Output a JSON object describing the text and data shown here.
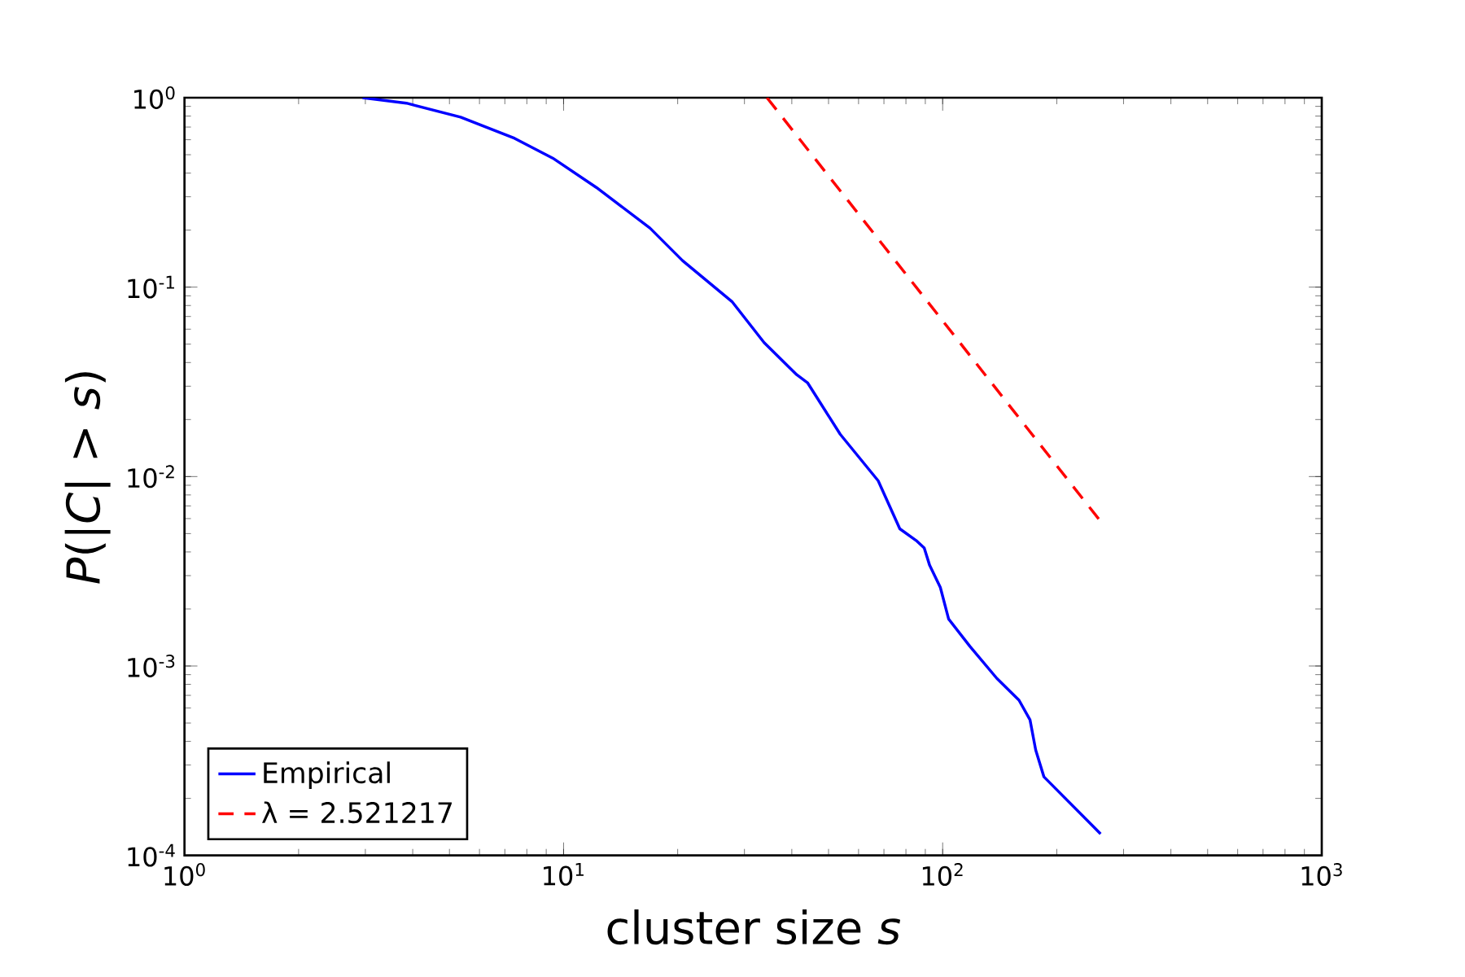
{
  "chart_data": {
    "type": "line",
    "xlabel": "cluster size *s*",
    "ylabel": "*P*(|*C*| > *s*)",
    "log": "xy",
    "grid": false,
    "legend": "bottom left",
    "marker": "none",
    "xlim": [
      1,
      1000
    ],
    "ylim": [
      0.0001,
      1
    ],
    "xticks": [
      {
        "value": 1,
        "label": "10$^{0}$"
      },
      {
        "value": 10,
        "label": "10$^{1}$"
      },
      {
        "value": 100,
        "label": "10$^{2}$"
      },
      {
        "value": 1000,
        "label": "10$^{3}$"
      }
    ],
    "yticks": [
      {
        "value": 0.0001,
        "label": "10$^{-4}$"
      },
      {
        "value": 0.001,
        "label": "10$^{-3}$"
      },
      {
        "value": 0.01,
        "label": "10$^{-2}$"
      },
      {
        "value": 0.1,
        "label": "10$^{-1}$"
      },
      {
        "value": 1,
        "label": "10$^{0}$"
      }
    ],
    "series": [
      {
        "name": "Empirical",
        "color": "#0000ff",
        "line_style": "solid",
        "x": [
          2.95,
          3.85,
          5.35,
          7.43,
          9.36,
          12.2,
          16.9,
          20.6,
          27.8,
          33.8,
          41.2,
          44,
          53.7,
          67.6,
          77.1,
          85.1,
          89.4,
          92.4,
          98.6,
          103.7,
          118,
          139,
          159,
          170,
          176,
          185,
          261
        ],
        "values": [
          1,
          0.936,
          0.79,
          0.61,
          0.48,
          0.336,
          0.205,
          0.138,
          0.084,
          0.051,
          0.0345,
          0.0313,
          0.0167,
          0.0095,
          0.0053,
          0.0046,
          0.0042,
          0.0034,
          0.0026,
          0.00177,
          0.00127,
          0.00086,
          0.00066,
          0.00052,
          0.00036,
          0.00026,
          0.00013
        ]
      },
      {
        "name": "λ = 2.521217",
        "color": "#ff0000",
        "line_style": "dashed",
        "x": [
          34.4,
          261
        ],
        "values": [
          1,
          0.0058
        ]
      }
    ]
  }
}
